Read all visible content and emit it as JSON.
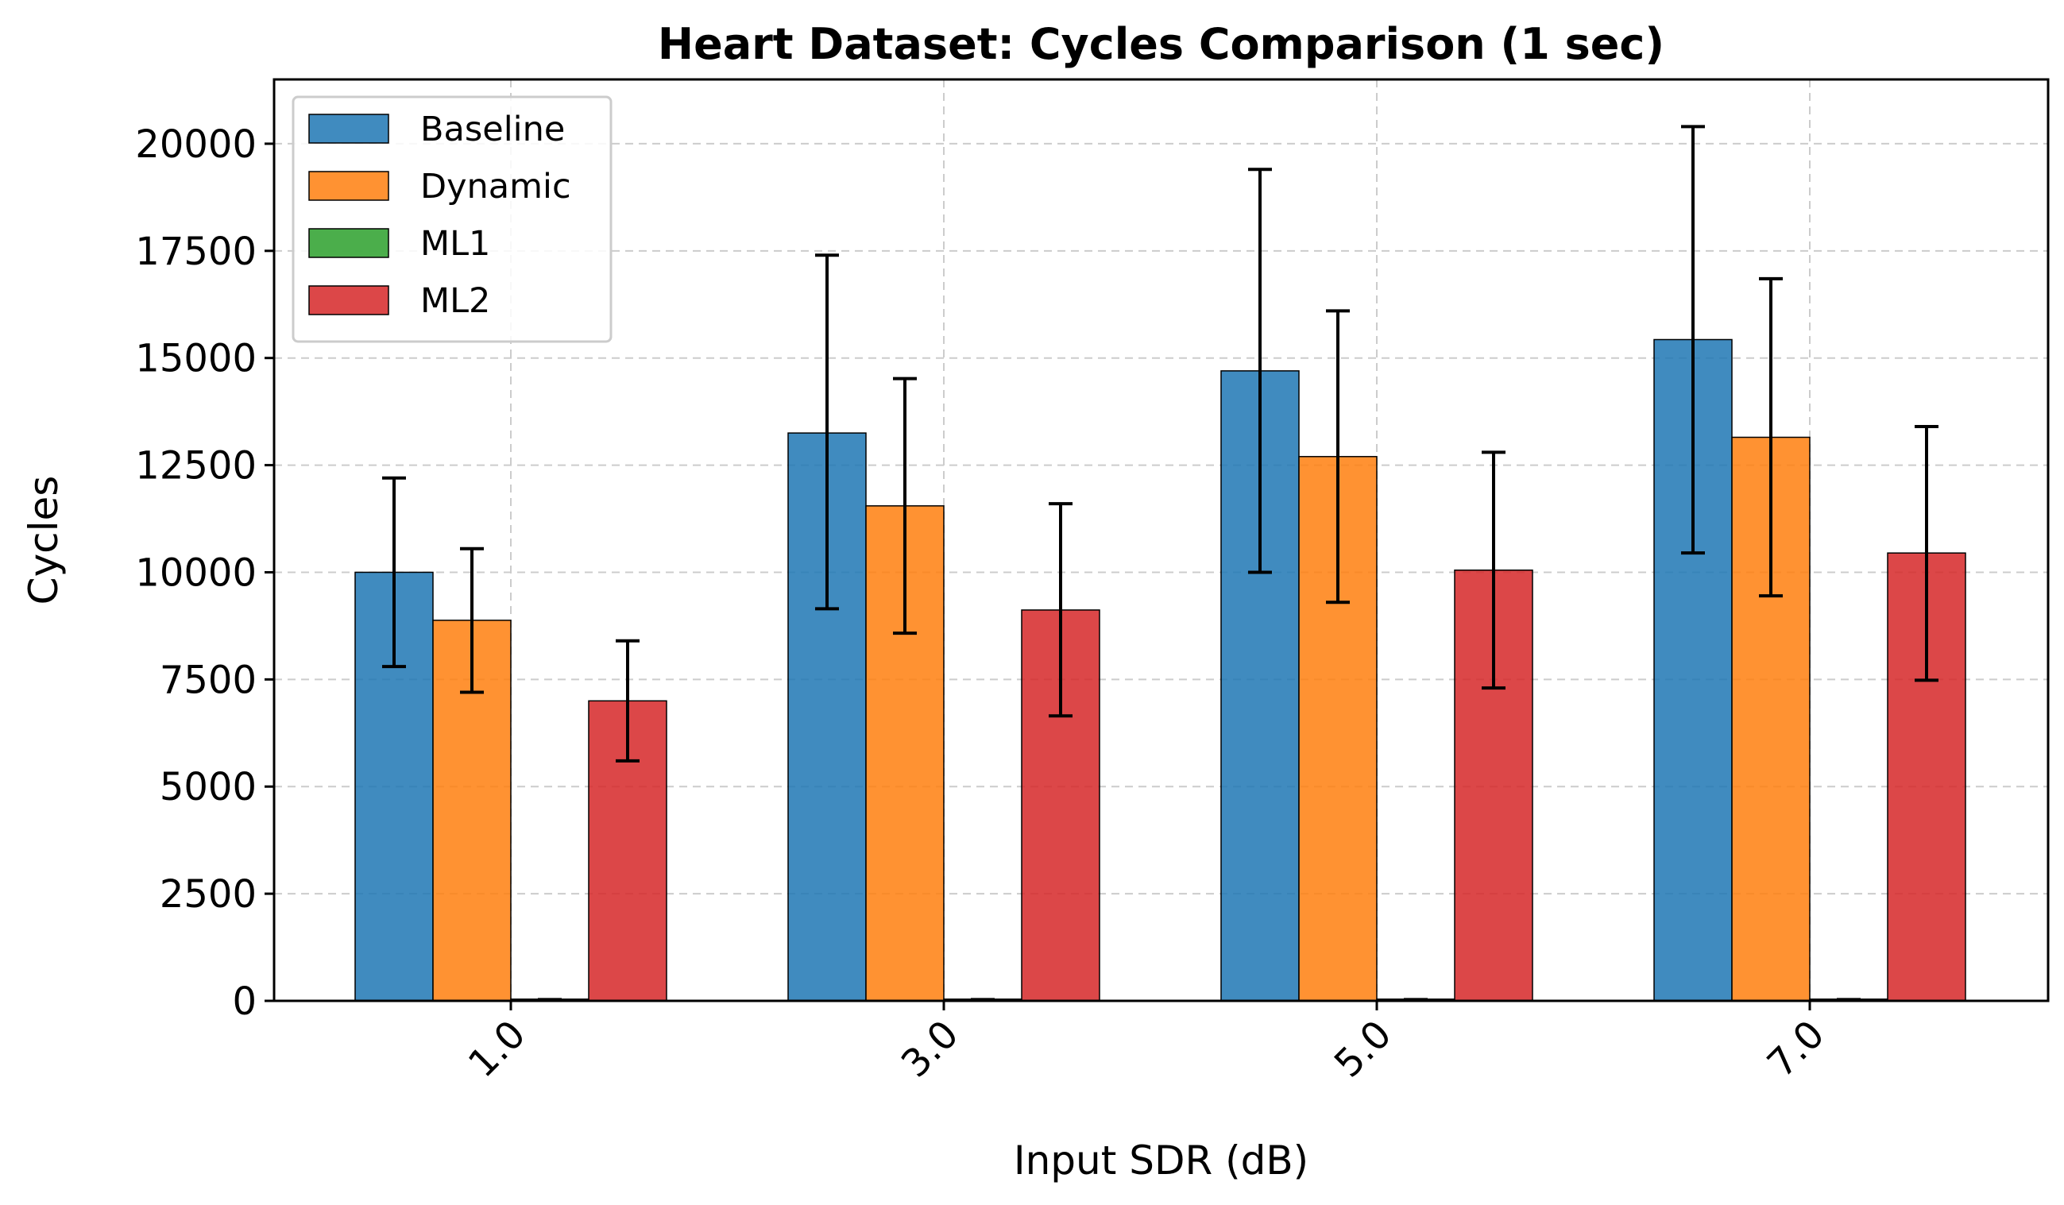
{
  "chart_data": {
    "type": "bar",
    "title": "Heart Dataset: Cycles Comparison (1 sec)",
    "xlabel": "Input SDR (dB)",
    "ylabel": "Cycles",
    "categories": [
      "1.0",
      "3.0",
      "5.0",
      "7.0"
    ],
    "ylim": [
      0,
      21500
    ],
    "yticks": [
      0,
      2500,
      5000,
      7500,
      10000,
      12500,
      15000,
      17500,
      20000
    ],
    "ytick_labels": [
      "0",
      "2500",
      "5000",
      "7500",
      "10000",
      "12500",
      "15000",
      "17500",
      "20000"
    ],
    "grid": true,
    "legend_position": "top-left",
    "series": [
      {
        "name": "Baseline",
        "color": "#1f77b4",
        "values": [
          10000,
          13250,
          14700,
          15430
        ],
        "error_low": [
          7800,
          9150,
          10000,
          10450
        ],
        "error_high": [
          12200,
          17400,
          19400,
          20400
        ]
      },
      {
        "name": "Dynamic",
        "color": "#ff7f0e",
        "values": [
          8880,
          11550,
          12700,
          13150
        ],
        "error_low": [
          7200,
          8580,
          9300,
          9450
        ],
        "error_high": [
          10550,
          14520,
          16100,
          16850
        ]
      },
      {
        "name": "ML1",
        "color": "#2ca02c",
        "values": [
          40,
          40,
          40,
          40
        ],
        "error_low": [
          40,
          40,
          40,
          40
        ],
        "error_high": [
          40,
          40,
          40,
          40
        ]
      },
      {
        "name": "ML2",
        "color": "#d62728",
        "values": [
          7000,
          9120,
          10050,
          10450
        ],
        "error_low": [
          5600,
          6650,
          7300,
          7480
        ],
        "error_high": [
          8400,
          11600,
          12800,
          13400
        ]
      }
    ]
  }
}
